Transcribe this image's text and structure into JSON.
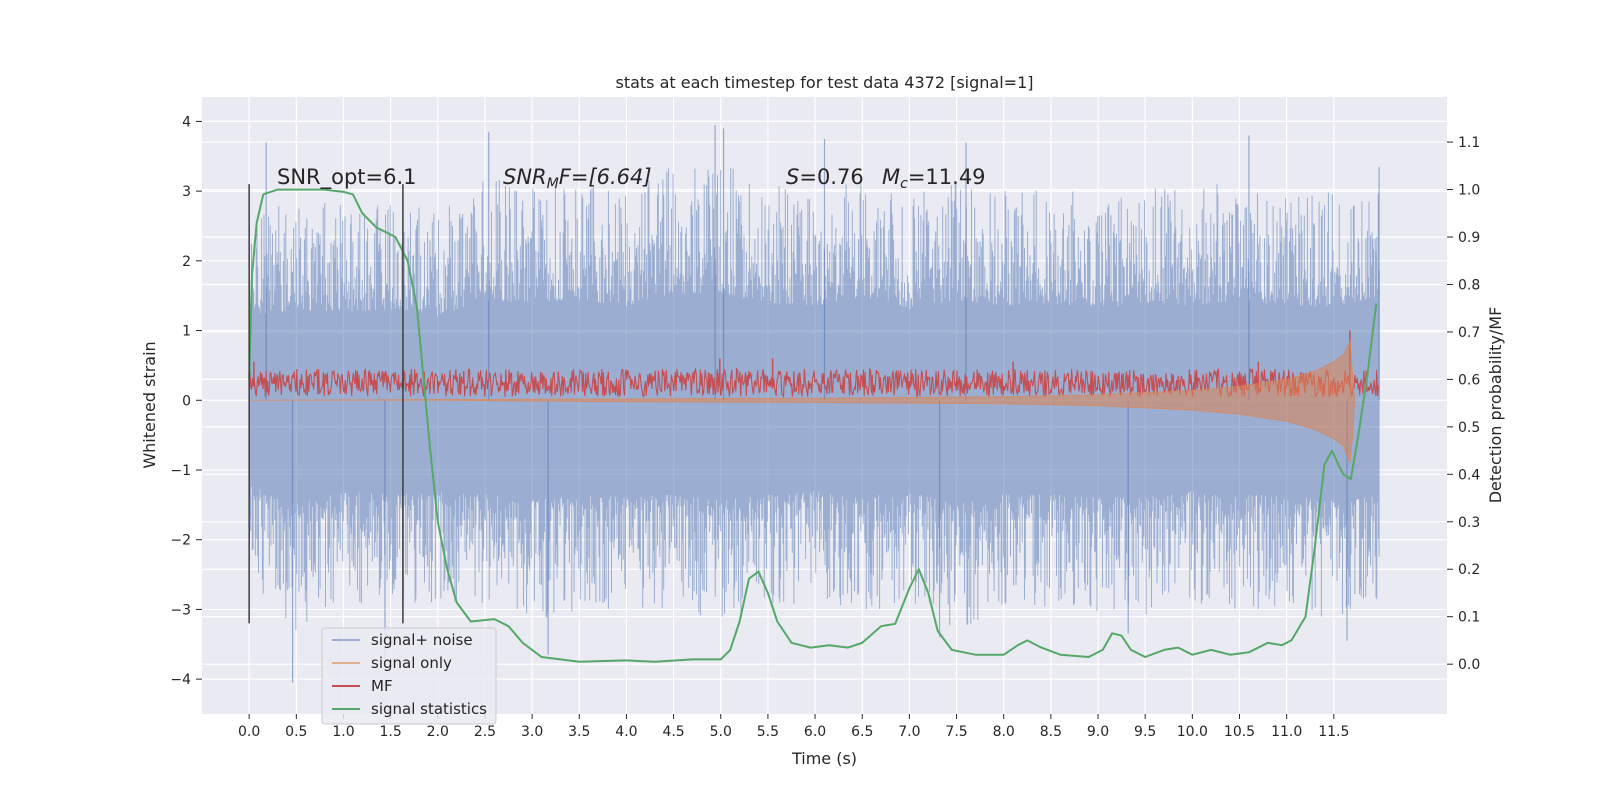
{
  "chart_data": {
    "type": "line",
    "title": "stats at each timestep for test data 4372 [signal=1]",
    "xlabel": "Time (s)",
    "ylabel": "Whitened strain",
    "y2label": "Detection probability/MF",
    "xlim": [
      -0.5,
      12.7
    ],
    "ylim": [
      -4.5,
      4.35
    ],
    "y2lim": [
      -0.105,
      1.195
    ],
    "xticks": [
      0.0,
      0.5,
      1.0,
      1.5,
      2.0,
      2.5,
      3.0,
      3.5,
      4.0,
      4.5,
      5.0,
      5.5,
      6.0,
      6.5,
      7.0,
      7.5,
      8.0,
      8.5,
      9.0,
      9.5,
      10.0,
      10.5,
      11.0,
      11.5
    ],
    "xtick_labels": [
      "0.0",
      "0.5",
      "1.0",
      "1.5",
      "2.0",
      "2.5",
      "3.0",
      "3.5",
      "4.0",
      "4.5",
      "5.0",
      "5.5",
      "6.0",
      "6.5",
      "7.0",
      "7.5",
      "8.0",
      "8.5",
      "9.0",
      "9.5",
      "10.0",
      "10.5",
      "11.0",
      "11.5"
    ],
    "yticks": [
      -4,
      -3,
      -2,
      -1,
      0,
      1,
      2,
      3,
      4
    ],
    "ytick_labels": [
      "−4",
      "−3",
      "−2",
      "−1",
      "0",
      "1",
      "2",
      "3",
      "4"
    ],
    "y2ticks": [
      0.0,
      0.1,
      0.2,
      0.3,
      0.4,
      0.5,
      0.6,
      0.7,
      0.8,
      0.9,
      1.0,
      1.1
    ],
    "y2tick_labels": [
      "0.0",
      "0.1",
      "0.2",
      "0.3",
      "0.4",
      "0.5",
      "0.6",
      "0.7",
      "0.8",
      "0.9",
      "1.0",
      "1.1"
    ],
    "grid": true,
    "legend_position": "lower-left",
    "annotations": {
      "snr_opt": "SNR_opt=6.1",
      "snr_mf_main": "SNR",
      "snr_mf_sub": "M",
      "snr_mf_rest": "F=[6.64]",
      "s_main": "S",
      "s_rest": "=0.76",
      "mc_main": "M",
      "mc_sub": "c",
      "mc_rest": "=11.49"
    },
    "vertical_lines": [
      0.0,
      1.63
    ],
    "series": [
      {
        "name": "signal+ noise",
        "color": "#4c72b0",
        "axis": "left",
        "x_range": [
          0.0,
          11.98
        ],
        "envelope_upper": [
          [
            0.0,
            2.6
          ],
          [
            0.5,
            2.9
          ],
          [
            1.0,
            2.8
          ],
          [
            1.5,
            2.9
          ],
          [
            2.0,
            2.7
          ],
          [
            2.5,
            3.2
          ],
          [
            3.0,
            3.1
          ],
          [
            3.5,
            3.2
          ],
          [
            4.0,
            3.0
          ],
          [
            4.5,
            3.4
          ],
          [
            5.0,
            3.4
          ],
          [
            5.5,
            3.1
          ],
          [
            6.0,
            3.0
          ],
          [
            6.5,
            3.3
          ],
          [
            7.0,
            2.9
          ],
          [
            7.5,
            3.2
          ],
          [
            8.0,
            3.0
          ],
          [
            8.5,
            3.1
          ],
          [
            9.0,
            2.9
          ],
          [
            9.5,
            3.1
          ],
          [
            10.0,
            3.0
          ],
          [
            10.5,
            3.2
          ],
          [
            11.0,
            3.0
          ],
          [
            11.5,
            3.0
          ],
          [
            11.98,
            3.3
          ]
        ],
        "envelope_lower": [
          [
            0.0,
            -2.7
          ],
          [
            0.5,
            -3.3
          ],
          [
            1.0,
            -2.9
          ],
          [
            1.5,
            -3.0
          ],
          [
            2.0,
            -2.9
          ],
          [
            2.5,
            -3.0
          ],
          [
            3.0,
            -3.2
          ],
          [
            3.5,
            -3.0
          ],
          [
            4.0,
            -3.1
          ],
          [
            4.5,
            -3.0
          ],
          [
            5.0,
            -3.2
          ],
          [
            5.5,
            -3.0
          ],
          [
            6.0,
            -2.9
          ],
          [
            6.5,
            -3.1
          ],
          [
            7.0,
            -2.9
          ],
          [
            7.5,
            -3.3
          ],
          [
            8.0,
            -3.0
          ],
          [
            8.5,
            -3.0
          ],
          [
            9.0,
            -3.1
          ],
          [
            9.5,
            -3.1
          ],
          [
            10.0,
            -2.9
          ],
          [
            10.5,
            -3.0
          ],
          [
            11.0,
            -3.0
          ],
          [
            11.5,
            -3.2
          ],
          [
            11.98,
            -3.0
          ]
        ],
        "spikes": [
          [
            0.46,
            -4.05
          ],
          [
            1.44,
            -3.8
          ],
          [
            3.17,
            -3.65
          ],
          [
            0.18,
            3.7
          ],
          [
            2.54,
            3.85
          ],
          [
            4.94,
            3.95
          ],
          [
            5.03,
            3.9
          ],
          [
            6.1,
            3.75
          ],
          [
            7.6,
            3.7
          ],
          [
            10.6,
            3.8
          ],
          [
            11.98,
            3.35
          ],
          [
            7.32,
            -3.4
          ],
          [
            11.64,
            -3.45
          ],
          [
            9.32,
            -3.35
          ]
        ]
      },
      {
        "name": "signal only",
        "color": "#dd8452",
        "axis": "left",
        "points": [
          [
            0.0,
            0.0
          ],
          [
            2.0,
            0.0
          ],
          [
            4.0,
            -0.02
          ],
          [
            6.0,
            -0.03
          ],
          [
            8.0,
            -0.05
          ],
          [
            9.0,
            -0.08
          ],
          [
            10.0,
            -0.14
          ],
          [
            10.5,
            -0.2
          ],
          [
            11.0,
            -0.3
          ],
          [
            11.3,
            -0.42
          ],
          [
            11.5,
            -0.55
          ],
          [
            11.6,
            -0.65
          ],
          [
            11.67,
            -0.9
          ],
          [
            11.7,
            -0.5
          ],
          [
            11.72,
            0.0
          ]
        ],
        "envelope_upper": [
          [
            0.0,
            0.0
          ],
          [
            6.0,
            0.03
          ],
          [
            8.0,
            0.05
          ],
          [
            9.0,
            0.08
          ],
          [
            10.0,
            0.14
          ],
          [
            10.5,
            0.2
          ],
          [
            11.0,
            0.3
          ],
          [
            11.3,
            0.42
          ],
          [
            11.5,
            0.55
          ],
          [
            11.6,
            0.65
          ],
          [
            11.67,
            0.85
          ],
          [
            11.72,
            0.0
          ]
        ]
      },
      {
        "name": "MF",
        "color": "#c44e52",
        "axis": "left",
        "band_lower": 0.05,
        "band_upper": 0.45,
        "spikes": [
          [
            11.67,
            1.0
          ],
          [
            4.99,
            0.6
          ],
          [
            5.55,
            0.6
          ],
          [
            8.1,
            0.55
          ],
          [
            10.7,
            0.55
          ],
          [
            0.05,
            0.55
          ]
        ]
      },
      {
        "name": "signal statistics",
        "color": "#55a868",
        "axis": "right",
        "points": [
          [
            0.0,
            0.6
          ],
          [
            0.03,
            0.82
          ],
          [
            0.08,
            0.93
          ],
          [
            0.15,
            0.99
          ],
          [
            0.3,
            1.0
          ],
          [
            0.8,
            1.0
          ],
          [
            1.0,
            0.995
          ],
          [
            1.1,
            0.99
          ],
          [
            1.2,
            0.95
          ],
          [
            1.35,
            0.92
          ],
          [
            1.55,
            0.9
          ],
          [
            1.68,
            0.85
          ],
          [
            1.78,
            0.75
          ],
          [
            1.85,
            0.6
          ],
          [
            1.92,
            0.45
          ],
          [
            2.0,
            0.3
          ],
          [
            2.1,
            0.2
          ],
          [
            2.2,
            0.13
          ],
          [
            2.35,
            0.09
          ],
          [
            2.6,
            0.095
          ],
          [
            2.75,
            0.08
          ],
          [
            2.9,
            0.045
          ],
          [
            3.1,
            0.015
          ],
          [
            3.5,
            0.005
          ],
          [
            4.0,
            0.008
          ],
          [
            4.3,
            0.005
          ],
          [
            4.7,
            0.01
          ],
          [
            5.0,
            0.01
          ],
          [
            5.1,
            0.03
          ],
          [
            5.2,
            0.09
          ],
          [
            5.3,
            0.18
          ],
          [
            5.4,
            0.195
          ],
          [
            5.5,
            0.15
          ],
          [
            5.6,
            0.09
          ],
          [
            5.75,
            0.045
          ],
          [
            5.95,
            0.035
          ],
          [
            6.15,
            0.04
          ],
          [
            6.35,
            0.035
          ],
          [
            6.5,
            0.045
          ],
          [
            6.7,
            0.08
          ],
          [
            6.85,
            0.085
          ],
          [
            7.0,
            0.16
          ],
          [
            7.1,
            0.2
          ],
          [
            7.2,
            0.15
          ],
          [
            7.3,
            0.07
          ],
          [
            7.45,
            0.03
          ],
          [
            7.7,
            0.02
          ],
          [
            8.0,
            0.02
          ],
          [
            8.15,
            0.04
          ],
          [
            8.25,
            0.05
          ],
          [
            8.4,
            0.035
          ],
          [
            8.6,
            0.02
          ],
          [
            8.9,
            0.015
          ],
          [
            9.05,
            0.03
          ],
          [
            9.15,
            0.065
          ],
          [
            9.25,
            0.06
          ],
          [
            9.35,
            0.03
          ],
          [
            9.5,
            0.015
          ],
          [
            9.7,
            0.03
          ],
          [
            9.85,
            0.035
          ],
          [
            10.0,
            0.02
          ],
          [
            10.2,
            0.03
          ],
          [
            10.4,
            0.02
          ],
          [
            10.6,
            0.025
          ],
          [
            10.8,
            0.045
          ],
          [
            10.95,
            0.04
          ],
          [
            11.05,
            0.05
          ],
          [
            11.2,
            0.1
          ],
          [
            11.3,
            0.25
          ],
          [
            11.4,
            0.42
          ],
          [
            11.48,
            0.45
          ],
          [
            11.55,
            0.42
          ],
          [
            11.6,
            0.4
          ],
          [
            11.68,
            0.39
          ],
          [
            11.75,
            0.47
          ],
          [
            11.85,
            0.6
          ],
          [
            11.95,
            0.76
          ]
        ]
      }
    ]
  }
}
